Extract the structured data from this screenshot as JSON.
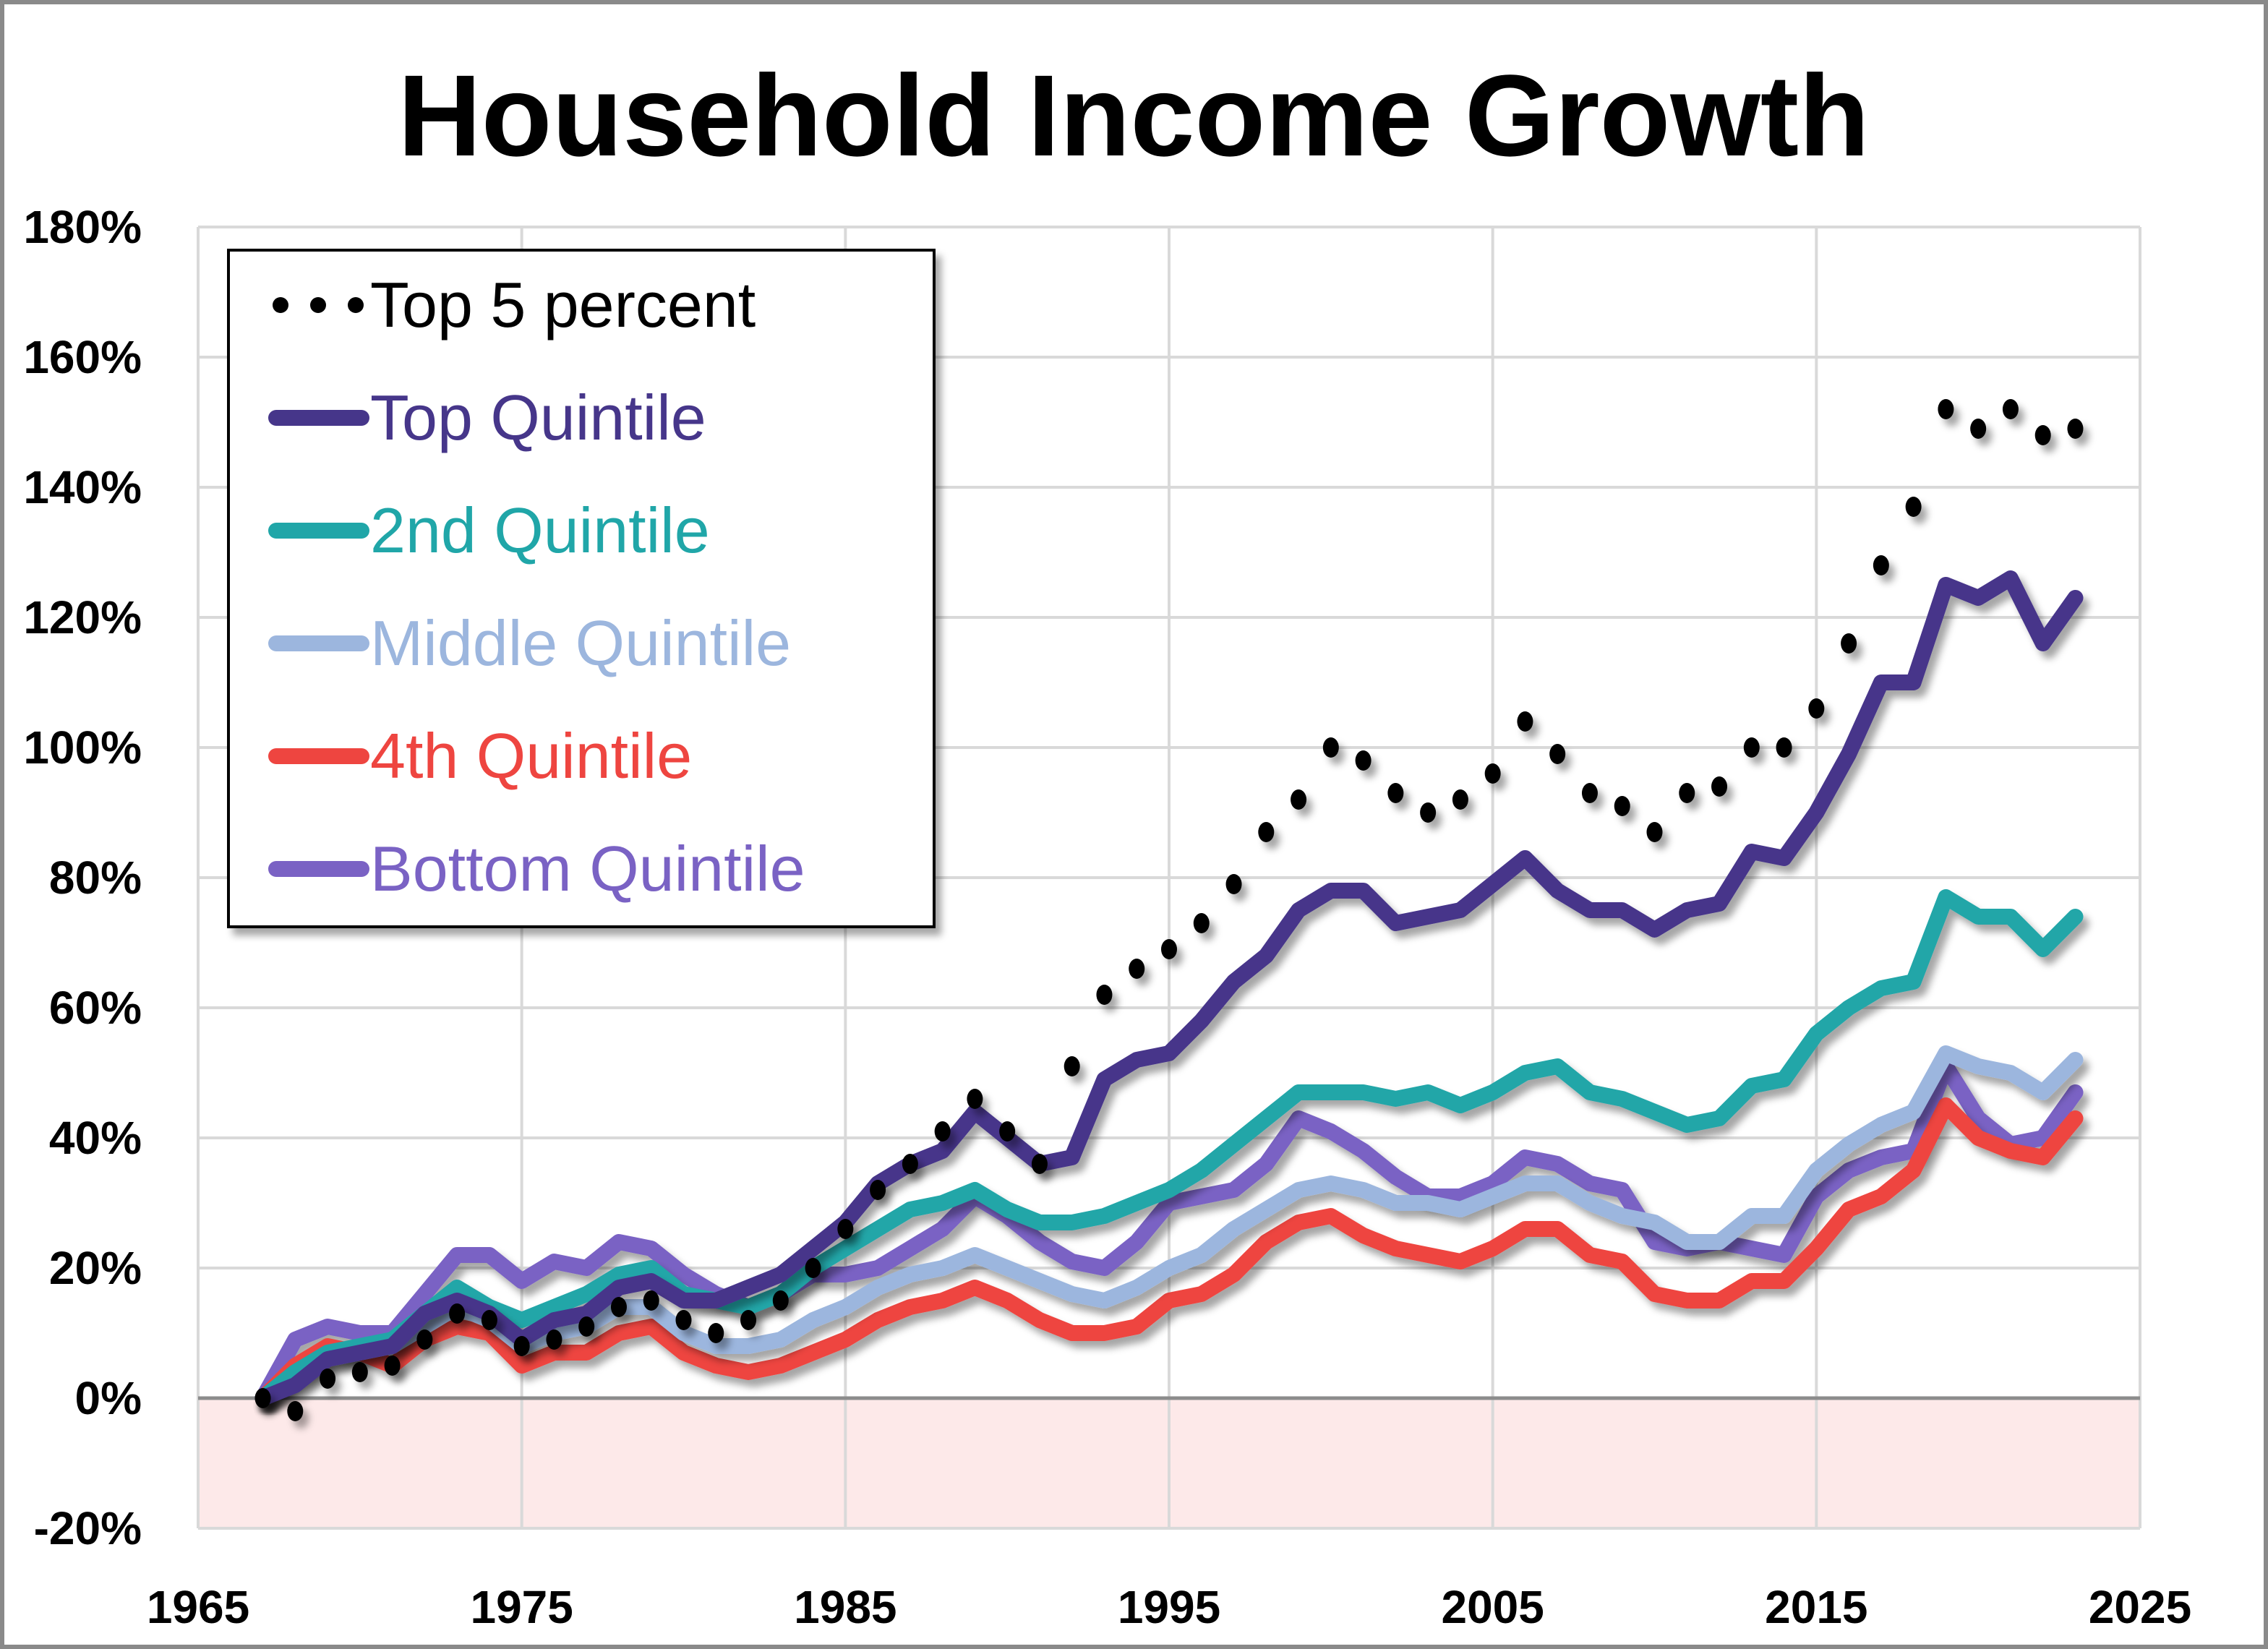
{
  "chart_data": {
    "type": "line",
    "title": "Household Income Growth",
    "xlabel": "",
    "ylabel": "",
    "xlim": [
      1965,
      2025
    ],
    "ylim": [
      -20,
      180
    ],
    "x_ticks": [
      "1965",
      "1975",
      "1985",
      "1995",
      "2005",
      "2015",
      "2025"
    ],
    "x_tick_values": [
      1965,
      1975,
      1985,
      1995,
      2005,
      2015,
      2025
    ],
    "y_ticks": [
      "180%",
      "160%",
      "140%",
      "120%",
      "100%",
      "80%",
      "60%",
      "40%",
      "20%",
      "0%",
      "-20%"
    ],
    "y_tick_values": [
      180,
      160,
      140,
      120,
      100,
      80,
      60,
      40,
      20,
      0,
      -20
    ],
    "grid": true,
    "negative_region_color": "#fde9e9",
    "legend_position": "top-left",
    "x": [
      1967,
      1968,
      1969,
      1970,
      1971,
      1972,
      1973,
      1974,
      1975,
      1976,
      1977,
      1978,
      1979,
      1980,
      1981,
      1982,
      1983,
      1984,
      1985,
      1986,
      1987,
      1988,
      1989,
      1990,
      1991,
      1992,
      1993,
      1994,
      1995,
      1996,
      1997,
      1998,
      1999,
      2000,
      2001,
      2002,
      2003,
      2004,
      2005,
      2006,
      2007,
      2008,
      2009,
      2010,
      2011,
      2012,
      2013,
      2014,
      2015,
      2016,
      2017,
      2018,
      2019,
      2020,
      2021,
      2022,
      2023
    ],
    "series": [
      {
        "name": "Top 5 percent",
        "style": "dots",
        "color": "#000000",
        "values": [
          0,
          -2,
          3,
          4,
          5,
          9,
          13,
          12,
          8,
          9,
          11,
          14,
          15,
          12,
          10,
          12,
          15,
          20,
          26,
          32,
          36,
          41,
          46,
          41,
          36,
          51,
          62,
          66,
          69,
          73,
          79,
          87,
          92,
          100,
          98,
          93,
          90,
          92,
          96,
          104,
          99,
          93,
          91,
          87,
          93,
          94,
          100,
          100,
          106,
          116,
          128,
          137,
          152,
          149,
          152,
          148,
          149
        ]
      },
      {
        "name": "Top Quintile",
        "style": "line",
        "color": "#46368a",
        "values": [
          0,
          2,
          6,
          7,
          8,
          13,
          15,
          13,
          9,
          12,
          13,
          17,
          18,
          15,
          15,
          17,
          19,
          23,
          27,
          33,
          36,
          38,
          44,
          40,
          36,
          37,
          49,
          52,
          53,
          58,
          64,
          68,
          75,
          78,
          78,
          73,
          74,
          75,
          79,
          83,
          78,
          75,
          75,
          72,
          75,
          76,
          84,
          83,
          90,
          99,
          110,
          110,
          125,
          123,
          126,
          116,
          123
        ]
      },
      {
        "name": "2nd Quintile",
        "style": "line",
        "color": "#20a6a8",
        "values": [
          0,
          4,
          7,
          8,
          9,
          13,
          17,
          14,
          12,
          14,
          16,
          19,
          20,
          16,
          15,
          14,
          16,
          20,
          23,
          26,
          29,
          30,
          32,
          29,
          27,
          27,
          28,
          30,
          32,
          35,
          39,
          43,
          47,
          47,
          47,
          46,
          47,
          45,
          47,
          50,
          51,
          47,
          46,
          44,
          42,
          43,
          48,
          49,
          56,
          60,
          63,
          64,
          77,
          74,
          74,
          69,
          74
        ]
      },
      {
        "name": "Middle Quintile",
        "style": "line",
        "color": "#9cb6de",
        "values": [
          0,
          3,
          6,
          7,
          8,
          11,
          14,
          12,
          8,
          10,
          11,
          14,
          14,
          10,
          8,
          8,
          9,
          12,
          14,
          17,
          19,
          20,
          22,
          20,
          18,
          16,
          15,
          17,
          20,
          22,
          26,
          29,
          32,
          33,
          32,
          30,
          30,
          29,
          31,
          33,
          33,
          30,
          28,
          27,
          24,
          24,
          28,
          28,
          35,
          39,
          42,
          44,
          53,
          51,
          50,
          47,
          52
        ]
      },
      {
        "name": "4th Quintile",
        "style": "line",
        "color": "#ee4540",
        "values": [
          0,
          5,
          8,
          7,
          5,
          9,
          11,
          10,
          5,
          7,
          7,
          10,
          11,
          7,
          5,
          4,
          5,
          7,
          9,
          12,
          14,
          15,
          17,
          15,
          12,
          10,
          10,
          11,
          15,
          16,
          19,
          24,
          27,
          28,
          25,
          23,
          22,
          21,
          23,
          26,
          26,
          22,
          21,
          16,
          15,
          15,
          18,
          18,
          23,
          29,
          31,
          35,
          45,
          40,
          38,
          37,
          43
        ]
      },
      {
        "name": "Bottom Quintile",
        "style": "line",
        "color": "#7a62c4",
        "values": [
          0,
          9,
          11,
          10,
          10,
          16,
          22,
          22,
          18,
          21,
          20,
          24,
          23,
          19,
          16,
          14,
          16,
          19,
          19,
          20,
          23,
          26,
          31,
          28,
          24,
          21,
          20,
          24,
          30,
          31,
          32,
          36,
          43,
          41,
          38,
          34,
          31,
          31,
          33,
          37,
          36,
          33,
          32,
          24,
          23,
          24,
          23,
          22,
          31,
          35,
          37,
          38,
          51,
          43,
          39,
          40,
          47
        ]
      }
    ]
  }
}
